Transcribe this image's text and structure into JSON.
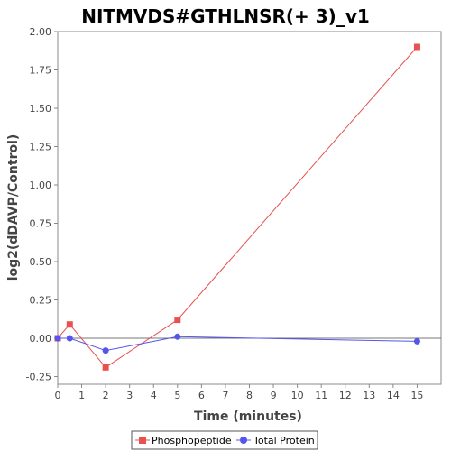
{
  "chart_data": {
    "type": "line",
    "title": "NITMVDS#GTHLNSR(+ 3)_v1",
    "xlabel": "Time (minutes)",
    "ylabel": "log2(dDAVP/Control)",
    "xlim": [
      0,
      16
    ],
    "ylim": [
      -0.3,
      2.0
    ],
    "xticks": [
      0,
      1,
      2,
      3,
      4,
      5,
      6,
      7,
      8,
      9,
      10,
      11,
      12,
      13,
      14,
      15
    ],
    "xtick_labels": [
      "0",
      "1",
      "2",
      "3",
      "4",
      "5",
      "6",
      "7",
      "8",
      "9",
      "10",
      "11",
      "12",
      "13",
      "14",
      "15"
    ],
    "yticks": [
      -0.25,
      0.0,
      0.25,
      0.5,
      0.75,
      1.0,
      1.25,
      1.5,
      1.75,
      2.0
    ],
    "ytick_labels": [
      "-0.25",
      "0.00",
      "0.25",
      "0.50",
      "0.75",
      "1.00",
      "1.25",
      "1.50",
      "1.75",
      "2.00"
    ],
    "grid": false,
    "legend_position": "bottom",
    "series": [
      {
        "name": "Phosphopeptide",
        "color": "#e8514f",
        "marker": "square",
        "x": [
          0,
          0.5,
          2,
          5,
          15
        ],
        "y": [
          0.0,
          0.09,
          -0.19,
          0.12,
          1.9
        ]
      },
      {
        "name": "Total Protein",
        "color": "#5555ee",
        "marker": "circle",
        "x": [
          0,
          0.5,
          2,
          5,
          15
        ],
        "y": [
          0.0,
          0.0,
          -0.08,
          0.01,
          -0.02
        ]
      }
    ]
  }
}
